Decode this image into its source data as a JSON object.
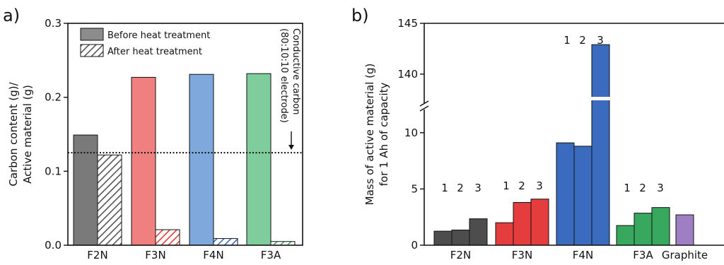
{
  "chart_data": [
    {
      "panel_label": "a)",
      "type": "bar",
      "ylabel_lines": [
        "Carbon content (g)/",
        "Active material (g)"
      ],
      "ylim": [
        0,
        0.3
      ],
      "yticks": [
        "0.0",
        "0.1",
        "0.2",
        "0.3"
      ],
      "ytick_values": [
        0.0,
        0.1,
        0.2,
        0.3
      ],
      "categories": [
        "F2N",
        "F3N",
        "F4N",
        "F3A"
      ],
      "colors": [
        "#7a7a7a",
        "#f08080",
        "#7fa8dc",
        "#7fcc9c"
      ],
      "series": [
        {
          "name": "Before heat treatment",
          "values": [
            0.149,
            0.227,
            0.231,
            0.232
          ]
        },
        {
          "name": "After heat treatment",
          "values": [
            0.122,
            0.021,
            0.009,
            0.005
          ]
        }
      ],
      "legend_position": "top-left",
      "reference_line": {
        "value": 0.125
      },
      "annotation_lines": [
        "Conductive carbon",
        "(80:10:10 electrode)"
      ]
    },
    {
      "panel_label": "b)",
      "type": "bar",
      "ylabel_lines": [
        "Mass of active material (g)",
        "for 1 Ah of capacity"
      ],
      "y_axis_break": {
        "lower": [
          0,
          12.5
        ],
        "upper": [
          137,
          145
        ]
      },
      "yticks_lower": [
        "0",
        "5",
        "10"
      ],
      "ytick_values_lower": [
        0,
        5,
        10
      ],
      "yticks_upper": [
        "140",
        "145"
      ],
      "ytick_values_upper": [
        140,
        145
      ],
      "categories": [
        "F2N",
        "F3N",
        "F4N",
        "F3A",
        "Graphite"
      ],
      "colors": [
        "#4d4d4d",
        "#e53d3d",
        "#3a6bbf",
        "#38a85e",
        "#9f7fc4"
      ],
      "groups": [
        {
          "category": "F2N",
          "bar_labels": [
            "1",
            "2",
            "3"
          ],
          "values": [
            1.25,
            1.35,
            2.35
          ]
        },
        {
          "category": "F3N",
          "bar_labels": [
            "1",
            "2",
            "3"
          ],
          "values": [
            2.0,
            3.8,
            4.1
          ]
        },
        {
          "category": "F4N",
          "bar_labels": [
            "1",
            "2",
            "3"
          ],
          "values": [
            9.1,
            8.8,
            142.9
          ]
        },
        {
          "category": "F3A",
          "bar_labels": [
            "1",
            "2",
            "3"
          ],
          "values": [
            1.75,
            2.85,
            3.35
          ]
        },
        {
          "category": "Graphite",
          "bar_labels": [],
          "values": [
            2.7
          ]
        }
      ]
    }
  ]
}
